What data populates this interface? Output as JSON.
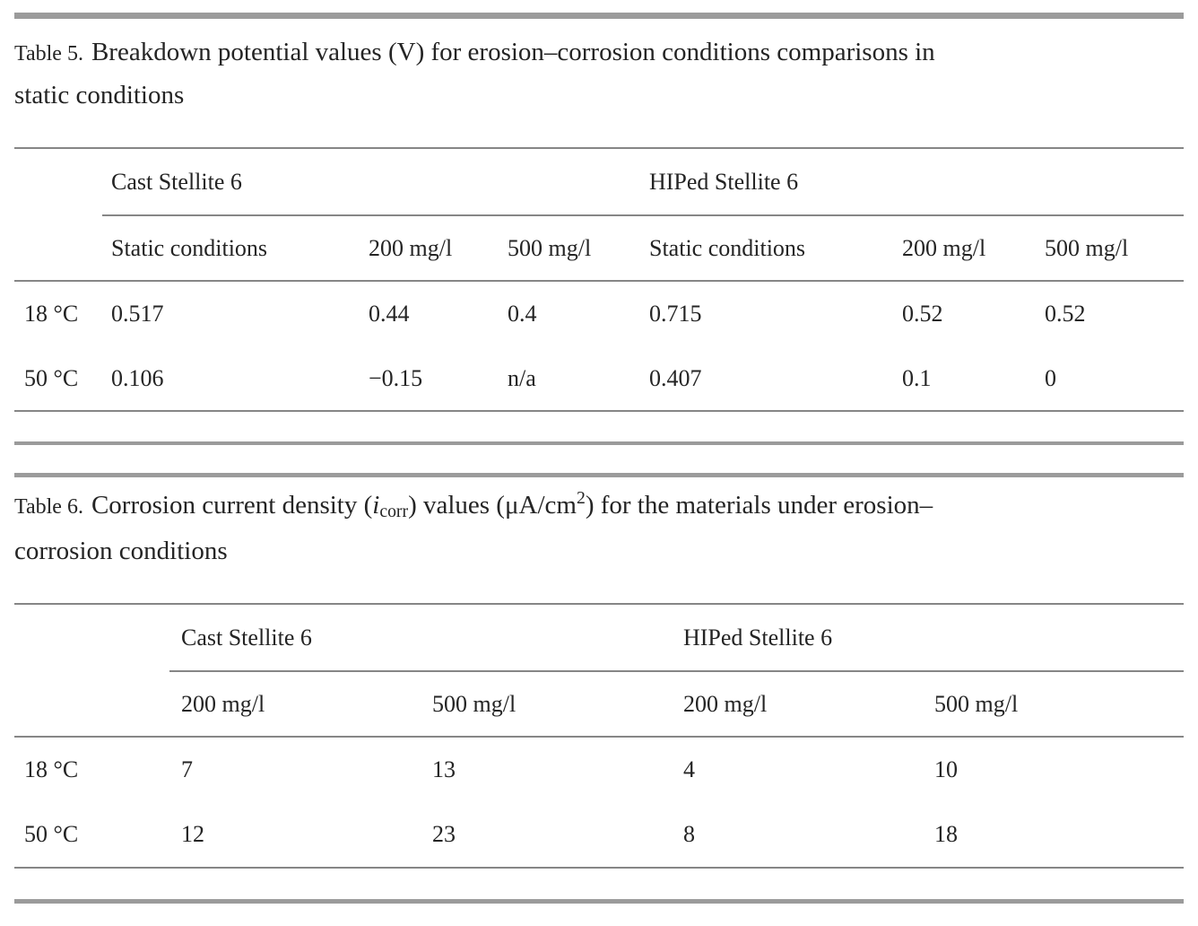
{
  "page": {
    "background": "#ffffff",
    "text_color": "#242424",
    "thin_rule_color": "#868686",
    "thick_rule_color": "#9b9b9b"
  },
  "table5": {
    "label": "Table 5.",
    "caption_line1": "Breakdown potential values (V) for erosion–corrosion conditions comparisons in",
    "caption_line2": "static conditions",
    "col_groups": [
      "Cast Stellite 6",
      "HIPed Stellite 6"
    ],
    "sub_headers": [
      "Static conditions",
      "200 mg/l",
      "500 mg/l",
      "Static conditions",
      "200 mg/l",
      "500 mg/l"
    ],
    "rows": [
      {
        "label": "18 °C",
        "values": [
          "0.517",
          "0.44",
          "0.4",
          "0.715",
          "0.52",
          "0.52"
        ]
      },
      {
        "label": "50 °C",
        "values": [
          "0.106",
          "−0.15",
          "n/a",
          "0.407",
          "0.1",
          "0"
        ]
      }
    ]
  },
  "table6": {
    "label": "Table 6.",
    "caption": {
      "seg1": "Corrosion current density (",
      "var": "i",
      "sub": "corr",
      "seg2": ") values (μA/cm",
      "sup": "2",
      "seg3": ") for the materials under erosion–",
      "line2": "corrosion conditions"
    },
    "col_groups": [
      "Cast Stellite 6",
      "HIPed Stellite 6"
    ],
    "sub_headers": [
      "200 mg/l",
      "500 mg/l",
      "200 mg/l",
      "500 mg/l"
    ],
    "rows": [
      {
        "label": "18 °C",
        "values": [
          "7",
          "13",
          "4",
          "10"
        ]
      },
      {
        "label": "50 °C",
        "values": [
          "12",
          "23",
          "8",
          "18"
        ]
      }
    ]
  }
}
